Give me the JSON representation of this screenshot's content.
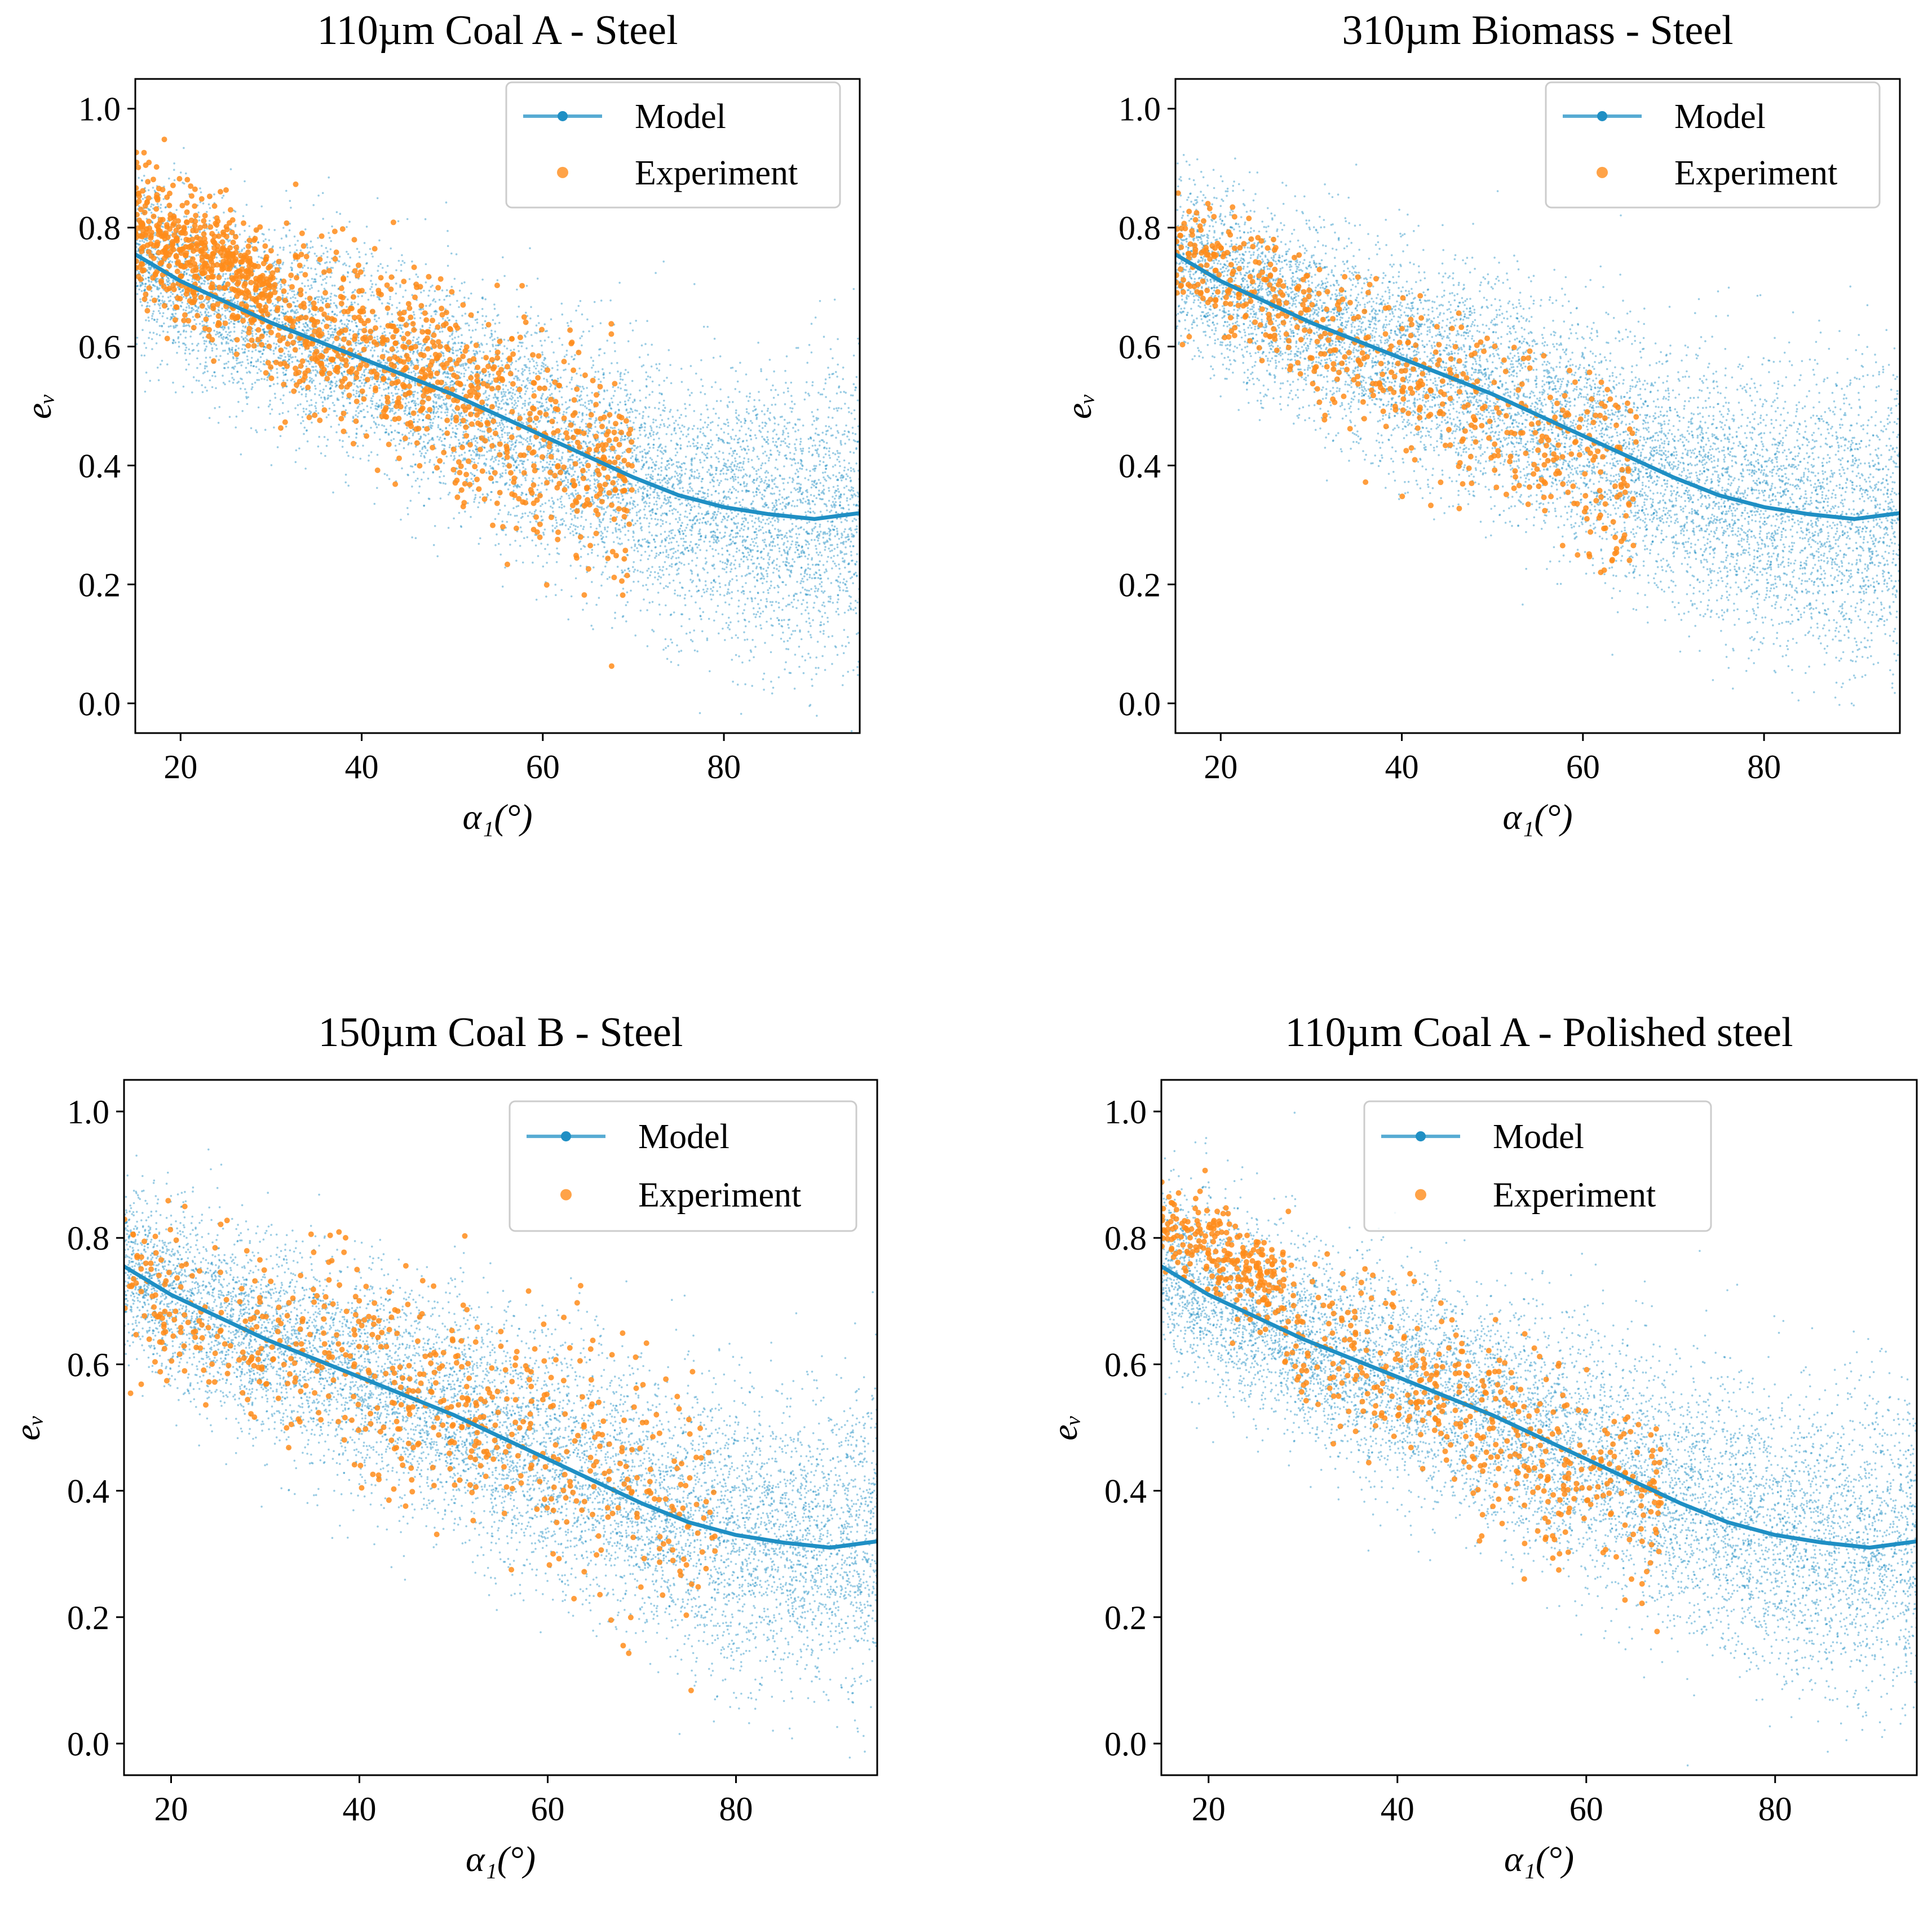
{
  "colors": {
    "model": "#1f8fc4",
    "model_scatter": "#1f8fc4",
    "experiment": "#ff8c1a",
    "axes": "#000000",
    "legend_border": "#cccccc"
  },
  "chart_data": [
    {
      "type": "scatter",
      "title": "110µm Coal A - Steel",
      "xlabel": "α₁(°)",
      "ylabel": "eᵥ",
      "xlim": [
        15,
        95
      ],
      "ylim": [
        -0.05,
        1.05
      ],
      "xticks": [
        "20",
        "40",
        "60",
        "80"
      ],
      "yticks": [
        "0.0",
        "0.2",
        "0.4",
        "0.6",
        "0.8",
        "1.0"
      ],
      "legend": [
        "Model",
        "Experiment"
      ],
      "legend_loc": "upper right",
      "series": [
        {
          "name": "Model",
          "kind": "line",
          "x": [
            15,
            20,
            25,
            30,
            35,
            40,
            45,
            50,
            55,
            60,
            65,
            70,
            75,
            80,
            85,
            90,
            95
          ],
          "y": [
            0.755,
            0.71,
            0.675,
            0.64,
            0.61,
            0.58,
            0.55,
            0.52,
            0.485,
            0.45,
            0.415,
            0.38,
            0.35,
            0.33,
            0.318,
            0.31,
            0.32
          ]
        },
        {
          "name": "Model",
          "kind": "scatter-cloud",
          "x_range": [
            15,
            95
          ],
          "spread": 0.09,
          "density": "high"
        },
        {
          "name": "Experiment",
          "kind": "scatter",
          "clusters": [
            {
              "x": [
                15,
                30
              ],
              "y_center": 0.74,
              "y_spread": 0.07,
              "count": 900
            },
            {
              "x": [
                30,
                50
              ],
              "y_center": 0.6,
              "y_spread": 0.1,
              "count": 700
            },
            {
              "x": [
                50,
                70
              ],
              "y_center": 0.44,
              "y_spread": 0.12,
              "count": 600
            }
          ]
        }
      ]
    },
    {
      "type": "scatter",
      "title": "310µm Biomass - Steel",
      "xlabel": "α₁(°)",
      "ylabel": "eᵥ",
      "xlim": [
        15,
        95
      ],
      "ylim": [
        -0.05,
        1.05
      ],
      "xticks": [
        "20",
        "40",
        "60",
        "80"
      ],
      "yticks": [
        "0.0",
        "0.2",
        "0.4",
        "0.6",
        "0.8",
        "1.0"
      ],
      "legend": [
        "Model",
        "Experiment"
      ],
      "legend_loc": "upper right",
      "series": [
        {
          "name": "Model",
          "kind": "line",
          "x": [
            15,
            20,
            25,
            30,
            35,
            40,
            45,
            50,
            55,
            60,
            65,
            70,
            75,
            80,
            85,
            90,
            95
          ],
          "y": [
            0.755,
            0.71,
            0.675,
            0.64,
            0.61,
            0.58,
            0.55,
            0.52,
            0.485,
            0.45,
            0.415,
            0.38,
            0.35,
            0.33,
            0.318,
            0.31,
            0.32
          ]
        },
        {
          "name": "Model",
          "kind": "scatter-cloud",
          "x_range": [
            15,
            95
          ],
          "spread": 0.09,
          "density": "high"
        },
        {
          "name": "Experiment",
          "kind": "scatter",
          "clusters": [
            {
              "x": [
                15,
                30
              ],
              "y_center": 0.7,
              "y_spread": 0.07,
              "count": 350
            },
            {
              "x": [
                30,
                50
              ],
              "y_center": 0.56,
              "y_spread": 0.1,
              "count": 350
            },
            {
              "x": [
                50,
                66
              ],
              "y_center": 0.42,
              "y_spread": 0.11,
              "count": 300
            }
          ]
        }
      ]
    },
    {
      "type": "scatter",
      "title": "150µm Coal B - Steel",
      "xlabel": "α₁(°)",
      "ylabel": "eᵥ",
      "xlim": [
        15,
        95
      ],
      "ylim": [
        -0.05,
        1.05
      ],
      "xticks": [
        "20",
        "40",
        "60",
        "80"
      ],
      "yticks": [
        "0.0",
        "0.2",
        "0.4",
        "0.6",
        "0.8",
        "1.0"
      ],
      "legend": [
        "Model",
        "Experiment"
      ],
      "legend_loc": "upper right",
      "series": [
        {
          "name": "Model",
          "kind": "line",
          "x": [
            15,
            20,
            25,
            30,
            35,
            40,
            45,
            50,
            55,
            60,
            65,
            70,
            75,
            80,
            85,
            90,
            95
          ],
          "y": [
            0.755,
            0.71,
            0.675,
            0.64,
            0.61,
            0.58,
            0.55,
            0.52,
            0.485,
            0.45,
            0.415,
            0.38,
            0.35,
            0.33,
            0.318,
            0.31,
            0.32
          ]
        },
        {
          "name": "Model",
          "kind": "scatter-cloud",
          "x_range": [
            15,
            95
          ],
          "spread": 0.09,
          "density": "high"
        },
        {
          "name": "Experiment",
          "kind": "scatter",
          "clusters": [
            {
              "x": [
                15,
                35
              ],
              "y_center": 0.66,
              "y_spread": 0.09,
              "count": 300
            },
            {
              "x": [
                35,
                55
              ],
              "y_center": 0.56,
              "y_spread": 0.12,
              "count": 400
            },
            {
              "x": [
                55,
                78
              ],
              "y_center": 0.43,
              "y_spread": 0.13,
              "count": 350
            }
          ]
        }
      ]
    },
    {
      "type": "scatter",
      "title": "110µm Coal A - Polished steel",
      "xlabel": "α₁(°)",
      "ylabel": "eᵥ",
      "xlim": [
        15,
        95
      ],
      "ylim": [
        -0.05,
        1.05
      ],
      "xticks": [
        "20",
        "40",
        "60",
        "80"
      ],
      "yticks": [
        "0.0",
        "0.2",
        "0.4",
        "0.6",
        "0.8",
        "1.0"
      ],
      "legend": [
        "Model",
        "Experiment"
      ],
      "legend_loc": "upper center",
      "series": [
        {
          "name": "Model",
          "kind": "line",
          "x": [
            15,
            20,
            25,
            30,
            35,
            40,
            45,
            50,
            55,
            60,
            65,
            70,
            75,
            80,
            85,
            90,
            95
          ],
          "y": [
            0.755,
            0.71,
            0.675,
            0.64,
            0.61,
            0.58,
            0.55,
            0.52,
            0.485,
            0.45,
            0.415,
            0.38,
            0.35,
            0.33,
            0.318,
            0.31,
            0.32
          ]
        },
        {
          "name": "Model",
          "kind": "scatter-cloud",
          "x_range": [
            15,
            95
          ],
          "spread": 0.09,
          "density": "high"
        },
        {
          "name": "Experiment",
          "kind": "scatter",
          "clusters": [
            {
              "x": [
                15,
                28
              ],
              "y_center": 0.77,
              "y_spread": 0.05,
              "count": 400
            },
            {
              "x": [
                28,
                48
              ],
              "y_center": 0.6,
              "y_spread": 0.09,
              "count": 350
            },
            {
              "x": [
                48,
                68
              ],
              "y_center": 0.44,
              "y_spread": 0.11,
              "count": 400
            }
          ]
        }
      ]
    }
  ]
}
